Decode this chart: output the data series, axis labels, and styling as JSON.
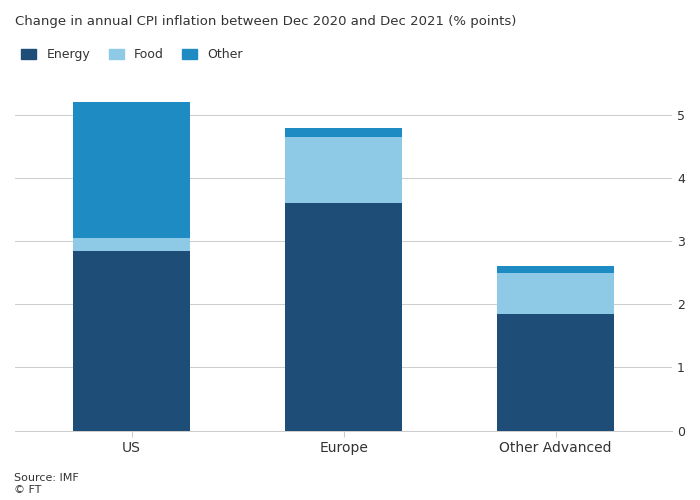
{
  "categories": [
    "US",
    "Europe",
    "Other Advanced"
  ],
  "energy": [
    2.85,
    3.6,
    1.85
  ],
  "food": [
    0.2,
    1.05,
    0.65
  ],
  "other": [
    2.15,
    0.15,
    0.1
  ],
  "colors": {
    "energy": "#1e4d78",
    "food": "#8ecae6",
    "other": "#1e8bc3"
  },
  "title": "Change in annual CPI inflation between Dec 2020 and Dec 2021 (% points)",
  "ylim": [
    0,
    5.5
  ],
  "yticks": [
    0,
    1,
    2,
    3,
    4,
    5
  ],
  "legend_labels": [
    "Energy",
    "Food",
    "Other"
  ],
  "source": "Source: IMF\n© FT",
  "background_color": "#ffffff",
  "text_color": "#333333",
  "grid_color": "#cccccc",
  "bar_width": 0.55
}
